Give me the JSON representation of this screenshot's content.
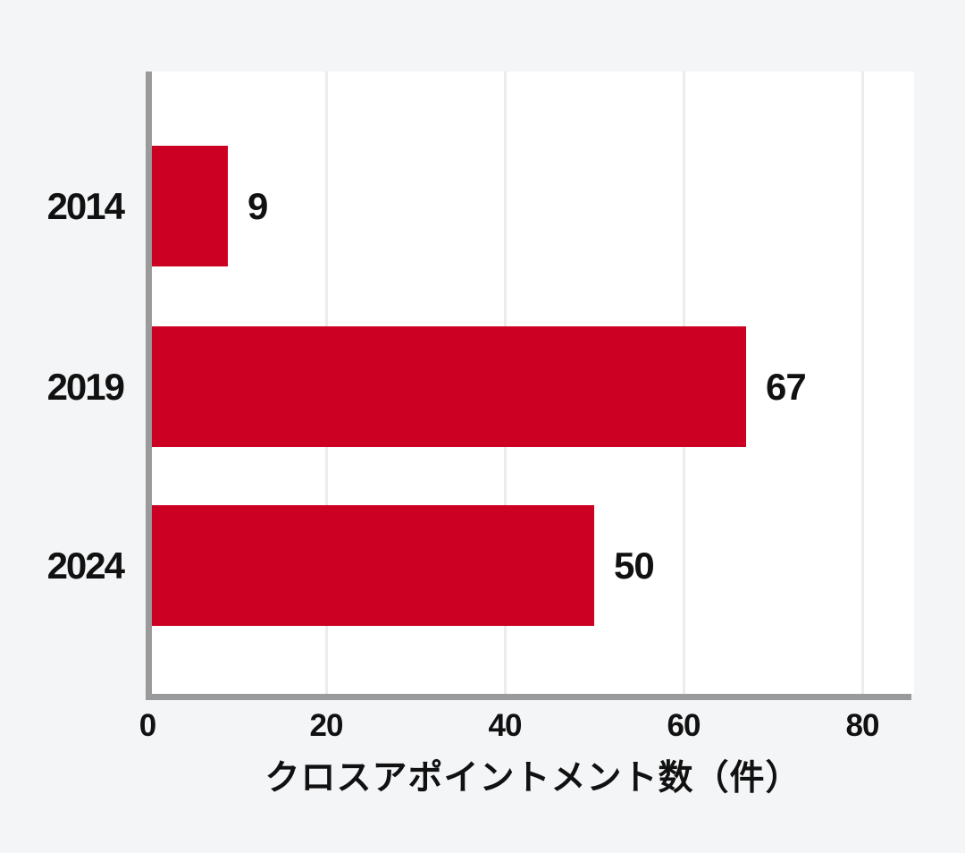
{
  "chart_data": {
    "type": "bar",
    "orientation": "horizontal",
    "title": "",
    "categories": [
      "2014",
      "2019",
      "2024"
    ],
    "values": [
      9,
      67,
      50
    ],
    "value_labels": [
      "9",
      "67",
      "50"
    ],
    "xlabel": "クロスアポイントメント数（件）",
    "ylabel": "",
    "x_ticks": [
      0,
      20,
      40,
      60,
      80
    ],
    "xlim": [
      0,
      86
    ],
    "grid": "vertical-only",
    "legend": "none",
    "colors": {
      "bar": "#cc0022",
      "plot_background": "#ffffff",
      "page_background": "#f4f5f7",
      "axis_line": "#9a9a9a",
      "gridline": "#ececec",
      "text": "#111111"
    }
  }
}
